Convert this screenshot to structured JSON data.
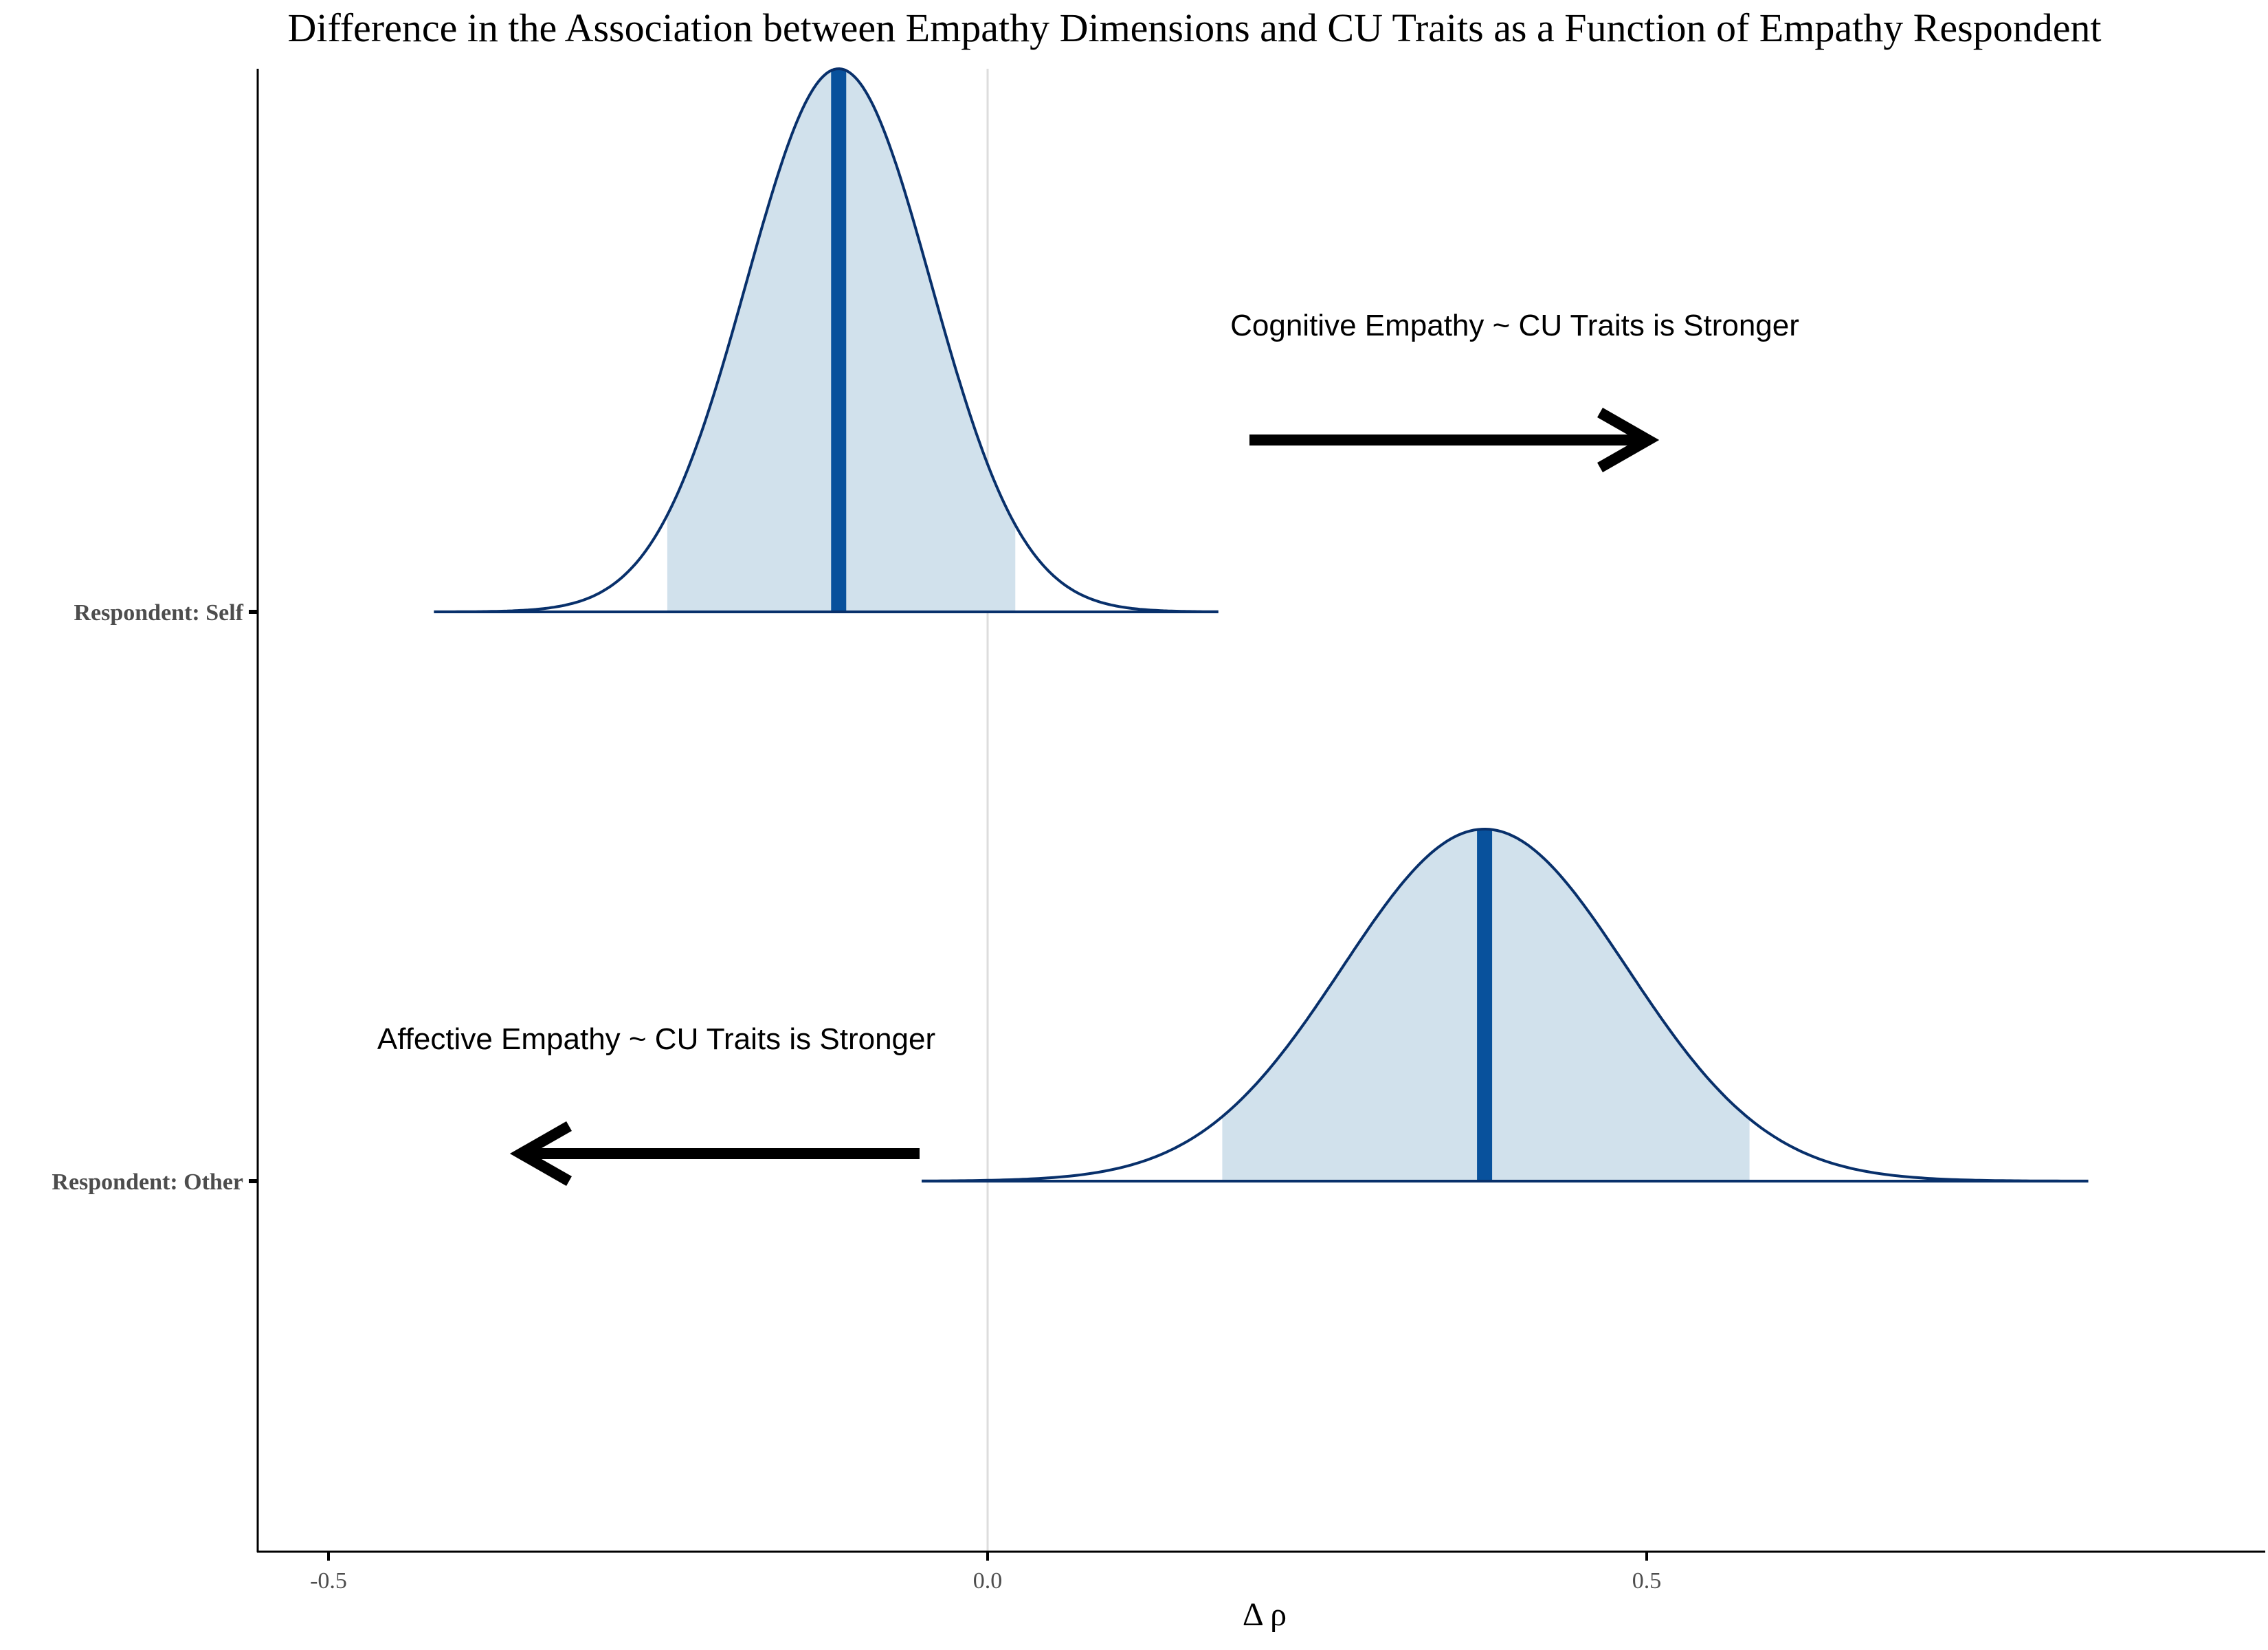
{
  "chart_data": {
    "type": "density",
    "title": "Difference in the Association between Empathy Dimensions and CU Traits as a Function of Empathy Respondent",
    "xlabel": "Δ ρ",
    "ylabel": "",
    "xlim": [
      -0.55,
      0.97
    ],
    "x_ticks": [
      -0.5,
      0.0,
      0.5
    ],
    "x_tick_labels": [
      "-0.5",
      "0.0",
      "0.5"
    ],
    "reference_line_x": 0.0,
    "grid": false,
    "legend": "none",
    "series": [
      {
        "label": "Respondent: Self",
        "median": -0.113,
        "interval": [
          -0.243,
          0.021
        ],
        "range": [
          -0.42,
          0.175
        ],
        "sd": 0.07
      },
      {
        "label": "Respondent: Other",
        "median": 0.377,
        "interval": [
          0.178,
          0.578
        ],
        "range": [
          -0.05,
          0.835
        ],
        "sd": 0.108
      }
    ],
    "annotations": [
      {
        "text": "Cognitive Empathy ~ CU Traits is Stronger",
        "direction": "right"
      },
      {
        "text": "Affective Empathy ~ CU Traits is Stronger",
        "direction": "left"
      }
    ],
    "colors": {
      "outline": "#08306b",
      "fill": "#d1e1ec",
      "median_line": "#08519c",
      "reference_line": "#dddddd",
      "arrow": "#000000",
      "text": "#000000",
      "tick_label": "#4d4d4d"
    }
  }
}
